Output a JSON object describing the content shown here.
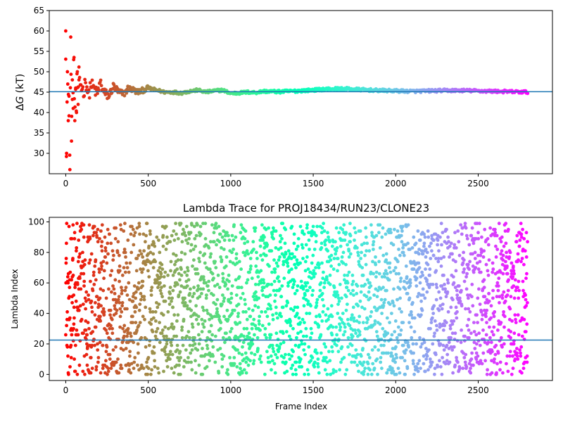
{
  "chart_data": [
    {
      "type": "scatter",
      "title": "",
      "xlabel": "",
      "ylabel_prefix": "Δ",
      "ylabel_var": "G",
      "ylabel_suffix": " (kT)",
      "xlim": [
        -100,
        2950
      ],
      "ylim": [
        25,
        65
      ],
      "xticks": [
        0,
        500,
        1000,
        1500,
        2000,
        2500
      ],
      "yticks": [
        30,
        35,
        40,
        45,
        50,
        55,
        60,
        65
      ],
      "hline": 45.1,
      "hline_color": "#1f77b4",
      "colormap": "rainbow-reversed",
      "x_max": 2800,
      "series": [
        {
          "x": [
            0,
            5,
            10,
            15,
            20,
            25,
            30,
            35,
            40,
            45,
            50,
            55,
            60,
            65,
            70,
            75,
            80,
            90,
            100,
            110,
            120,
            130,
            140,
            150,
            170,
            190,
            210,
            230,
            260,
            290,
            320,
            350,
            380,
            410,
            440,
            470,
            500,
            550,
            600,
            650,
            700,
            750,
            800,
            850,
            900,
            950,
            1000,
            1050,
            1100,
            1150,
            1200,
            1300,
            1400,
            1500,
            1600,
            1700,
            1800,
            1900,
            2000,
            2100,
            2200,
            2300,
            2400,
            2500,
            2600,
            2700,
            2800
          ],
          "y": [
            60,
            30,
            50,
            38,
            44,
            26,
            58.5,
            33,
            48,
            41,
            53.5,
            38,
            46,
            40,
            50,
            42,
            48,
            47,
            46,
            45,
            48,
            46,
            44,
            47,
            46,
            44.5,
            47.5,
            45,
            44,
            46.5,
            45,
            44.5,
            46,
            45.5,
            45,
            45.5,
            46,
            45.5,
            45,
            45,
            44.8,
            45.2,
            45.5,
            45,
            45.3,
            45.5,
            44.7,
            44.8,
            45,
            44.9,
            45.2,
            45.1,
            45.3,
            45.5,
            45.8,
            45.8,
            45.6,
            45.4,
            45.3,
            45.2,
            45.3,
            45.4,
            45.4,
            45.3,
            45.2,
            45.1,
            45
          ]
        }
      ]
    },
    {
      "type": "scatter",
      "title": "Lambda Trace for PROJ18434/RUN23/CLONE23",
      "xlabel": "Frame Index",
      "ylabel": "Lambda Index",
      "xlim": [
        -100,
        2950
      ],
      "ylim": [
        -4,
        103
      ],
      "xticks": [
        0,
        500,
        1000,
        1500,
        2000,
        2500
      ],
      "yticks": [
        0,
        20,
        40,
        60,
        80,
        100
      ],
      "hline": 22.5,
      "hline_color": "#1f77b4",
      "colormap": "rainbow-reversed",
      "x_max": 2800,
      "y_range": [
        0,
        99
      ],
      "n_points": 2800,
      "distribution": "approximately uniform over lambda index 0–99 for every frame"
    }
  ]
}
